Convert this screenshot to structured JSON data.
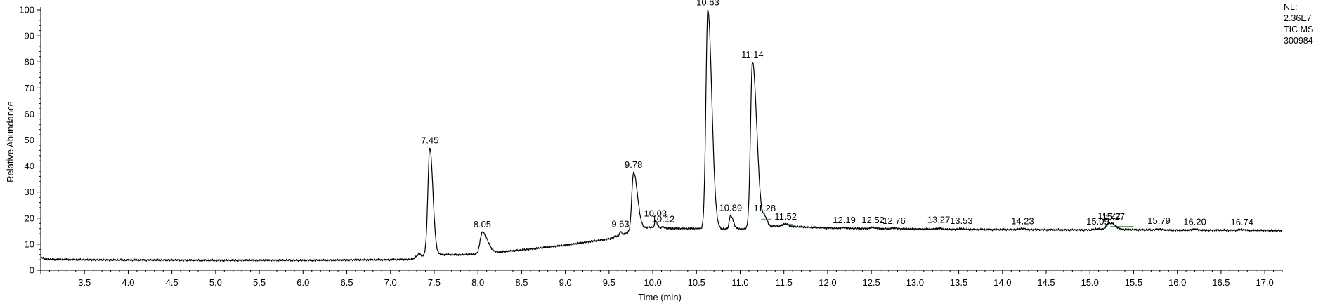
{
  "chart_data": {
    "type": "line",
    "title": "",
    "xlabel": "Time (min)",
    "ylabel": "Relative Abundance",
    "xlim": [
      3.0,
      17.2
    ],
    "ylim": [
      0,
      100
    ],
    "grid": false,
    "x_ticks": [
      "3.5",
      "4.0",
      "4.5",
      "5.0",
      "5.5",
      "6.0",
      "6.5",
      "7.0",
      "7.5",
      "8.0",
      "8.5",
      "9.0",
      "9.5",
      "10.0",
      "10.5",
      "11.0",
      "11.5",
      "12.0",
      "12.5",
      "13.0",
      "13.5",
      "14.0",
      "14.5",
      "15.0",
      "15.5",
      "16.0",
      "16.5",
      "17.0"
    ],
    "y_ticks": [
      "0",
      "10",
      "20",
      "30",
      "40",
      "50",
      "60",
      "70",
      "80",
      "90",
      "100"
    ],
    "info_box": [
      "NL:",
      "2.36E7",
      "TIC  MS",
      "300984"
    ],
    "baseline": [
      [
        3.0,
        5.0
      ],
      [
        3.05,
        4.2
      ],
      [
        3.2,
        4.1
      ],
      [
        4.0,
        3.9
      ],
      [
        5.0,
        3.8
      ],
      [
        6.0,
        3.8
      ],
      [
        7.0,
        4.0
      ],
      [
        7.25,
        4.2
      ],
      [
        7.3,
        5.5
      ],
      [
        7.33,
        6.5
      ],
      [
        7.36,
        5.5
      ],
      [
        7.4,
        6.0
      ],
      [
        7.6,
        6.0
      ],
      [
        7.8,
        5.9
      ],
      [
        7.97,
        6.1
      ],
      [
        8.2,
        6.8
      ],
      [
        8.5,
        7.8
      ],
      [
        9.0,
        9.6
      ],
      [
        9.5,
        12.0
      ],
      [
        9.6,
        13.2
      ],
      [
        9.7,
        14.3
      ],
      [
        9.95,
        16.5
      ],
      [
        10.2,
        16.0
      ],
      [
        10.5,
        16.0
      ],
      [
        10.75,
        15.8
      ],
      [
        11.05,
        15.9
      ],
      [
        11.4,
        17.0
      ],
      [
        12.0,
        16.2
      ],
      [
        13.0,
        15.8
      ],
      [
        14.0,
        15.6
      ],
      [
        15.0,
        15.5
      ],
      [
        15.15,
        15.6
      ],
      [
        15.35,
        15.6
      ],
      [
        16.0,
        15.4
      ],
      [
        17.0,
        15.3
      ],
      [
        17.2,
        15.2
      ]
    ],
    "peaks": [
      {
        "label": "7.45",
        "rt": 7.45,
        "height": 47.0,
        "width": 0.022,
        "tail": 0.035
      },
      {
        "label": "8.05",
        "rt": 8.05,
        "height": 14.6,
        "width": 0.025,
        "tail": 0.06
      },
      {
        "label": "9.63",
        "rt": 9.63,
        "height": 14.9,
        "width": 0.008,
        "tail": 0.012
      },
      {
        "label": "9.78",
        "rt": 9.78,
        "height": 37.5,
        "width": 0.02,
        "tail": 0.045
      },
      {
        "label": "10.03",
        "rt": 10.03,
        "height": 19.0,
        "width": 0.01,
        "tail": 0.02
      },
      {
        "label": "10.12",
        "rt": 10.12,
        "height": 16.6,
        "width": 0.02,
        "tail": 0.02
      },
      {
        "label": "10.63",
        "rt": 10.63,
        "height": 100.0,
        "width": 0.022,
        "tail": 0.045
      },
      {
        "label": "10.89",
        "rt": 10.89,
        "height": 21.0,
        "width": 0.015,
        "tail": 0.03
      },
      {
        "label": "11.14",
        "rt": 11.14,
        "height": 80.0,
        "width": 0.022,
        "tail": 0.05
      },
      {
        "label": "11.28",
        "rt": 11.28,
        "height": 20.0,
        "width": 0.02,
        "tail": 0.03
      },
      {
        "label": "11.52",
        "rt": 11.52,
        "height": 17.8,
        "width": 0.03,
        "tail": 0.03
      },
      {
        "label": "12.19",
        "rt": 12.19,
        "height": 16.4,
        "width": 0.03,
        "tail": 0.03
      },
      {
        "label": "12.52",
        "rt": 12.52,
        "height": 16.4,
        "width": 0.03,
        "tail": 0.03
      },
      {
        "label": "12.76",
        "rt": 12.76,
        "height": 16.2,
        "width": 0.03,
        "tail": 0.03
      },
      {
        "label": "13.27",
        "rt": 13.27,
        "height": 16.1,
        "width": 0.03,
        "tail": 0.03
      },
      {
        "label": "13.53",
        "rt": 13.53,
        "height": 16.0,
        "width": 0.03,
        "tail": 0.03
      },
      {
        "label": "14.23",
        "rt": 14.23,
        "height": 16.0,
        "width": 0.03,
        "tail": 0.03
      },
      {
        "label": "15.09",
        "rt": 15.09,
        "height": 15.9,
        "width": 0.03,
        "tail": 0.03
      },
      {
        "label": "15.22",
        "rt": 15.22,
        "height": 18.0,
        "width": 0.03,
        "tail": 0.06
      },
      {
        "label": "15.27",
        "rt": 15.27,
        "height": 16.0,
        "width": 0.02,
        "tail": 0.03
      },
      {
        "label": "15.79",
        "rt": 15.79,
        "height": 15.8,
        "width": 0.03,
        "tail": 0.03
      },
      {
        "label": "16.20",
        "rt": 16.2,
        "height": 15.8,
        "width": 0.03,
        "tail": 0.03
      },
      {
        "label": "16.74",
        "rt": 16.74,
        "height": 15.6,
        "width": 0.03,
        "tail": 0.03
      }
    ],
    "integration_marks": [
      {
        "from": 10.12,
        "to": 10.3,
        "level": 16.3
      },
      {
        "from": 11.24,
        "to": 11.36,
        "level": 19.6
      },
      {
        "from": 11.48,
        "to": 11.6,
        "level": 17.6
      },
      {
        "from": 12.72,
        "to": 12.82,
        "level": 16.1
      },
      {
        "from": 15.06,
        "to": 15.14,
        "level": 15.8
      },
      {
        "from": 15.23,
        "to": 15.5,
        "level": 16.8
      },
      {
        "from": 15.75,
        "to": 15.84,
        "level": 15.7
      }
    ],
    "colors": {
      "trace": "#000000",
      "axis": "#000000",
      "integration": "#2e9e3e"
    }
  }
}
